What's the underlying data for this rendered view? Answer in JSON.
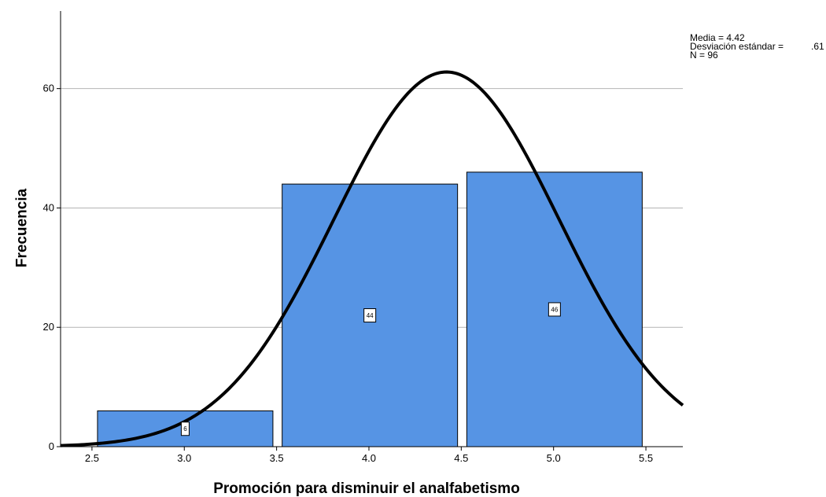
{
  "chart_data": {
    "type": "bar",
    "title": "",
    "xlabel": "Promoción para disminuir el analfabetismo",
    "ylabel": "Frecuencia",
    "xlim": [
      2.33,
      5.7
    ],
    "ylim": [
      0,
      73
    ],
    "x_ticks": [
      "2.5",
      "3.0",
      "3.5",
      "4.0",
      "4.5",
      "5.0",
      "5.5"
    ],
    "y_ticks": [
      "0",
      "20",
      "40",
      "60"
    ],
    "grid": true,
    "bars": [
      {
        "x_start": 2.53,
        "x_end": 3.48,
        "value": 6,
        "label": "6"
      },
      {
        "x_start": 3.53,
        "x_end": 4.48,
        "value": 44,
        "label": "44"
      },
      {
        "x_start": 4.53,
        "x_end": 5.48,
        "value": 46,
        "label": "46"
      }
    ],
    "normal_curve": {
      "mean": 4.42,
      "sd": 0.61,
      "n": 96,
      "bin_width": 1.0
    },
    "bar_color": "#5694e4",
    "curve_color": "#000000"
  },
  "stats": {
    "mean_line": "Media = 4.42",
    "sd_label": "Desviación estándar =",
    "sd_value": ".61",
    "n_line": "N = 96"
  }
}
